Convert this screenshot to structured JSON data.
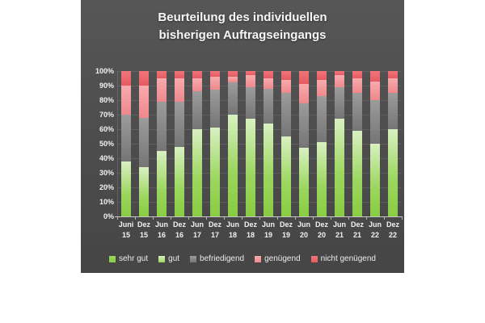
{
  "title": {
    "line1": "Beurteilung des individuellen",
    "line2": "bisherigen Auftragseingangs"
  },
  "colors": {
    "panel_background": "#4c4c4c",
    "page_background": "#ffffff",
    "text": "#f2f2f2",
    "gridline": "rgba(255,255,255,0.10)",
    "axis_line": "#c7c7c7"
  },
  "chart_data": {
    "type": "bar",
    "stacking": "percent",
    "title": "Beurteilung des individuellen bisherigen Auftragseingangs",
    "xlabel": "",
    "ylabel": "",
    "ylim": [
      0,
      100
    ],
    "grid": true,
    "legend_position": "bottom",
    "y_ticks": [
      "0%",
      "10%",
      "20%",
      "30%",
      "40%",
      "50%",
      "60%",
      "70%",
      "80%",
      "90%",
      "100%"
    ],
    "categories": [
      "Juni 15",
      "Dez 15",
      "Jun 16",
      "Dez 16",
      "Jun 17",
      "Dez 17",
      "Jun 18",
      "Dez 18",
      "Jun 19",
      "Dez 19",
      "Jun 20",
      "Dez 20",
      "Jun 21",
      "Dez 21",
      "Jun 22",
      "Dez 22"
    ],
    "category_line1": [
      "Juni",
      "Dez",
      "Jun",
      "Dez",
      "Jun",
      "Dez",
      "Jun",
      "Dez",
      "Jun",
      "Dez",
      "Jun",
      "Dez",
      "Jun",
      "Dez",
      "Jun",
      "Dez"
    ],
    "category_line2": [
      "15",
      "15",
      "16",
      "16",
      "17",
      "17",
      "18",
      "18",
      "19",
      "19",
      "20",
      "20",
      "21",
      "21",
      "22",
      "22"
    ],
    "series": [
      {
        "name": "sehr gut",
        "key": "sehr-gut",
        "swatch": "#8ccd4a",
        "gradient_top": "#9bd65e",
        "gradient_bottom": "#89cc42",
        "values": [
          15,
          13,
          18,
          19,
          25,
          25,
          31,
          28,
          27,
          22,
          19,
          21,
          29,
          24,
          20,
          25
        ]
      },
      {
        "name": "gut",
        "key": "gut",
        "swatch": "#a9dc6b",
        "gradient_top": "#d9f0c2",
        "gradient_bottom": "#9bd65e",
        "values": [
          23,
          21,
          27,
          29,
          35,
          36,
          39,
          39,
          37,
          33,
          28,
          30,
          38,
          35,
          30,
          35
        ]
      },
      {
        "name": "befriedigend",
        "key": "befriedigend",
        "swatch": "#9a9a9a",
        "gradient_top": "#9c9c9c",
        "gradient_bottom": "#757575",
        "values": [
          32,
          34,
          34,
          31,
          26,
          26,
          22,
          22,
          24,
          30,
          31,
          32,
          22,
          26,
          30,
          25
        ]
      },
      {
        "name": "genügend",
        "key": "genuegend",
        "swatch": "#f29a9d",
        "gradient_top": "#f8abae",
        "gradient_bottom": "#ee888c",
        "values": [
          20,
          22,
          16,
          16,
          9,
          9,
          4,
          8,
          7,
          9,
          13,
          11,
          8,
          10,
          13,
          10
        ]
      },
      {
        "name": "nicht genügend",
        "key": "nicht-genuegend",
        "swatch": "#ee797e",
        "gradient_top": "#f0767b",
        "gradient_bottom": "#e65a61",
        "values": [
          10,
          10,
          5,
          5,
          5,
          4,
          4,
          3,
          5,
          6,
          9,
          6,
          3,
          5,
          7,
          5
        ]
      }
    ]
  }
}
